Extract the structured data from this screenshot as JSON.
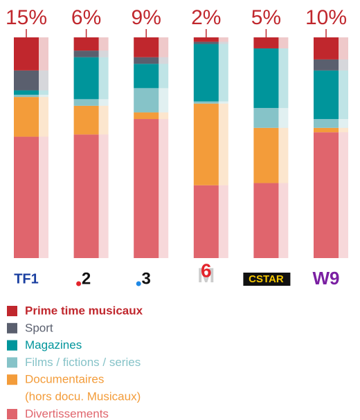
{
  "chart_data": {
    "type": "stacked_bar",
    "categories": [
      "TF1",
      "2",
      "3",
      "6",
      "CSTAR",
      "W9"
    ],
    "ylim": [
      0,
      100
    ],
    "series": [
      {
        "name": "Divertissements",
        "color": "#e0656d",
        "values": [
          55,
          56,
          63,
          33,
          34,
          57
        ]
      },
      {
        "name": "Documentaires",
        "note": "(hors docu. Musicaux)",
        "color": "#f39c3a",
        "values": [
          18,
          13,
          3,
          37,
          25,
          2
        ]
      },
      {
        "name": "Films / fictions / series",
        "color": "#86c3c8",
        "values": [
          1,
          3,
          11,
          1,
          9,
          4
        ]
      },
      {
        "name": "Magazines",
        "color": "#00959b",
        "values": [
          2,
          19,
          11,
          26,
          27,
          22
        ]
      },
      {
        "name": "Sport",
        "color": "#5a5f6e",
        "values": [
          9,
          3,
          3,
          1,
          0,
          5
        ]
      },
      {
        "name": "Prime time musicaux",
        "color": "#c0272d",
        "values": [
          15,
          6,
          9,
          2,
          5,
          10
        ],
        "value_labels": [
          "15%",
          "6%",
          "9%",
          "2%",
          "5%",
          "10%"
        ]
      }
    ]
  }
}
